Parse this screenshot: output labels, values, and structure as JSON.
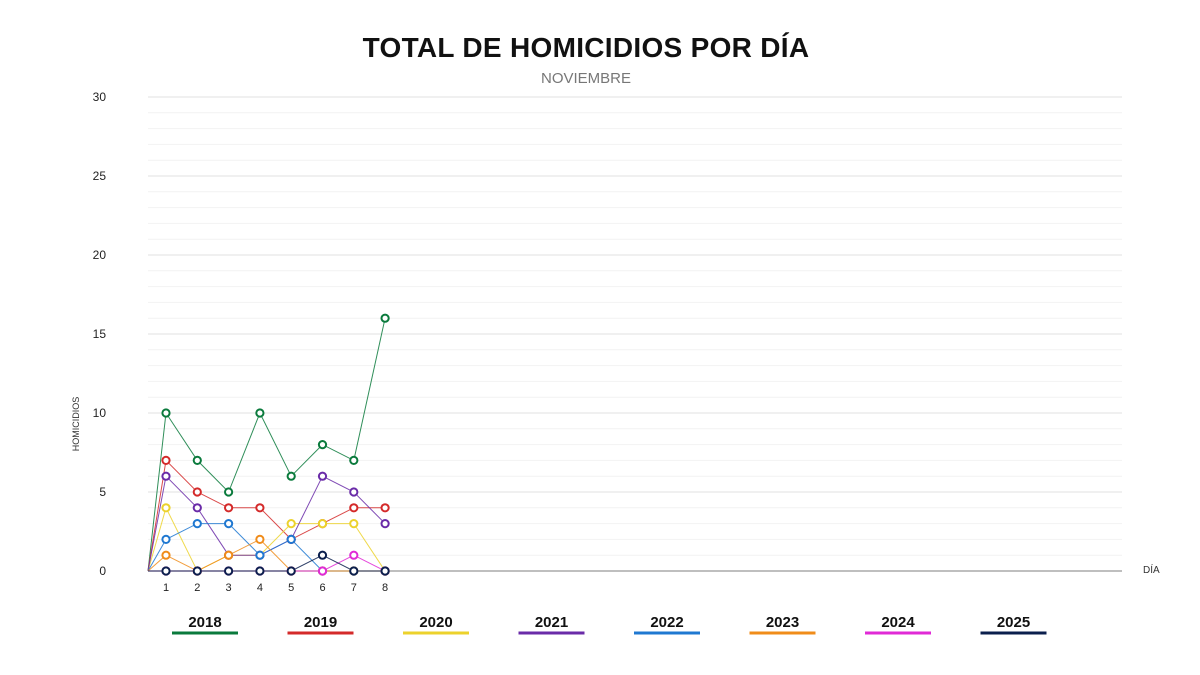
{
  "chart_data": {
    "type": "line",
    "title": "TOTAL DE HOMICIDIOS POR DÍA",
    "subtitle": "NOVIEMBRE",
    "ylabel": "HOMICIDIOS",
    "xlabel": "DÍA",
    "ylim": [
      0,
      30
    ],
    "yticks": [
      0,
      5,
      10,
      15,
      20,
      25,
      30
    ],
    "x": [
      1,
      2,
      3,
      4,
      5,
      6,
      7,
      8
    ],
    "grid": true,
    "legend_position": "bottom",
    "series": [
      {
        "name": "2018",
        "color": "#0a7a3c",
        "values": [
          10,
          7,
          5,
          10,
          6,
          8,
          7,
          16
        ]
      },
      {
        "name": "2019",
        "color": "#d42a2a",
        "values": [
          7,
          5,
          4,
          4,
          2,
          3,
          4,
          4
        ]
      },
      {
        "name": "2020",
        "color": "#ecd22c",
        "values": [
          4,
          0,
          1,
          1,
          3,
          3,
          3,
          0
        ]
      },
      {
        "name": "2021",
        "color": "#6a2ba8",
        "values": [
          6,
          4,
          1,
          1,
          2,
          6,
          5,
          3
        ]
      },
      {
        "name": "2022",
        "color": "#1f78d1",
        "values": [
          2,
          3,
          3,
          1,
          2,
          0,
          0,
          0
        ]
      },
      {
        "name": "2023",
        "color": "#f08c1a",
        "values": [
          1,
          0,
          1,
          2,
          0,
          0,
          0,
          0
        ]
      },
      {
        "name": "2024",
        "color": "#e02ad6",
        "values": [
          0,
          0,
          0,
          0,
          0,
          0,
          1,
          0
        ]
      },
      {
        "name": "2025",
        "color": "#0b1f4d",
        "values": [
          0,
          0,
          0,
          0,
          0,
          1,
          0,
          0
        ]
      }
    ]
  }
}
